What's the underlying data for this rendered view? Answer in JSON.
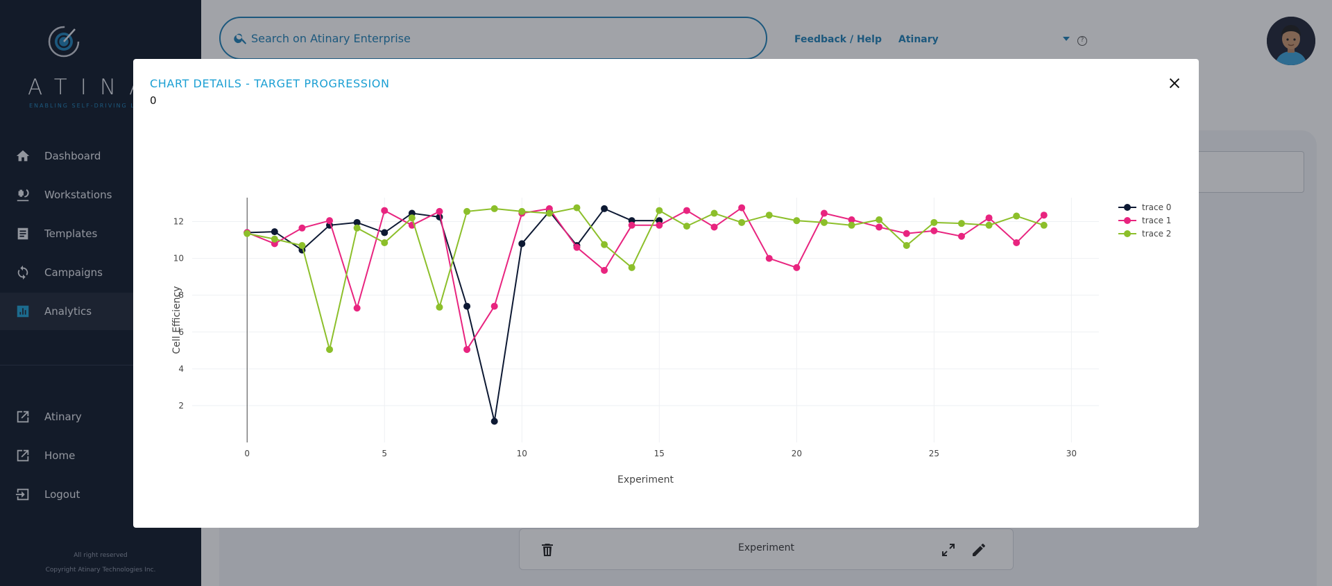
{
  "brand": {
    "wordmark": "ATINA",
    "tagline": "ENABLING SELF-DRIVING LABS"
  },
  "sidebar": {
    "items": [
      {
        "label": "Dashboard",
        "icon": "home-icon"
      },
      {
        "label": "Workstations",
        "icon": "microscope-icon"
      },
      {
        "label": "Templates",
        "icon": "document-icon"
      },
      {
        "label": "Campaigns",
        "icon": "refresh-icon"
      },
      {
        "label": "Analytics",
        "icon": "bar-chart-icon",
        "active": true
      },
      {
        "label": "Atinary",
        "icon": "external-link-icon"
      },
      {
        "label": "Home",
        "icon": "external-link-icon"
      },
      {
        "label": "Logout",
        "icon": "logout-icon"
      }
    ],
    "footer_rights": "All right reserved",
    "footer_copyright": "Copyright Atinary Technologies Inc."
  },
  "header": {
    "search_placeholder": "Search on Atinary Enterprise",
    "feedback_label": "Feedback / Help",
    "org_label": "Atinary"
  },
  "background": {
    "card_title": "Experiment"
  },
  "modal": {
    "title": "CHART DETAILS - TARGET PROGRESSION",
    "subtitle": "0"
  },
  "chart_data": {
    "type": "line",
    "xlabel": "Experiment",
    "ylabel": "Cell Efficiency",
    "xlim": [
      -2,
      31
    ],
    "ylim": [
      0,
      13.3
    ],
    "xticks": [
      0,
      5,
      10,
      15,
      20,
      25,
      30
    ],
    "yticks": [
      2,
      4,
      6,
      8,
      10,
      12
    ],
    "grid": true,
    "legend_position": "top-right",
    "series": [
      {
        "name": "trace 0",
        "color": "#0d1933",
        "x": [
          0,
          1,
          2,
          3,
          4,
          5,
          6,
          7,
          8,
          9,
          10,
          11,
          12,
          13,
          14,
          15
        ],
        "y": [
          11.4,
          11.45,
          10.45,
          11.8,
          11.95,
          11.4,
          12.45,
          12.25,
          7.4,
          1.15,
          10.8,
          12.55,
          10.7,
          12.7,
          12.05,
          12.05
        ]
      },
      {
        "name": "trace 1",
        "color": "#e8247f",
        "x": [
          0,
          1,
          2,
          3,
          4,
          5,
          6,
          7,
          8,
          9,
          10,
          11,
          12,
          13,
          14,
          15,
          16,
          17,
          18,
          19,
          20,
          21,
          22,
          23,
          24,
          25,
          26,
          27,
          28,
          29
        ],
        "y": [
          11.4,
          10.8,
          11.65,
          12.05,
          7.3,
          12.6,
          11.8,
          12.55,
          5.05,
          7.4,
          12.45,
          12.7,
          10.6,
          9.35,
          11.8,
          11.8,
          12.6,
          11.7,
          12.75,
          10.0,
          9.5,
          12.45,
          12.1,
          11.7,
          11.35,
          11.5,
          11.2,
          12.2,
          10.85,
          12.35
        ]
      },
      {
        "name": "trace 2",
        "color": "#8cbf2a",
        "x": [
          0,
          1,
          2,
          3,
          4,
          5,
          6,
          7,
          8,
          9,
          10,
          11,
          12,
          13,
          14,
          15,
          16,
          17,
          18,
          19,
          20,
          21,
          22,
          23,
          24,
          25,
          26,
          27,
          28,
          29
        ],
        "y": [
          11.35,
          11.05,
          10.7,
          5.05,
          11.65,
          10.85,
          12.2,
          7.35,
          12.55,
          12.7,
          12.55,
          12.45,
          12.75,
          10.75,
          9.5,
          12.6,
          11.75,
          12.45,
          11.95,
          12.35,
          12.05,
          11.95,
          11.8,
          12.1,
          10.7,
          11.95,
          11.9,
          11.8,
          12.3,
          11.8
        ]
      }
    ]
  }
}
